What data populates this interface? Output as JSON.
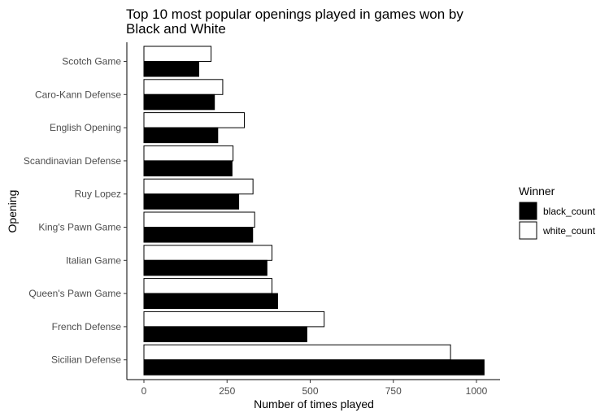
{
  "chart_data": {
    "type": "bar",
    "orientation": "horizontal",
    "title": "Top 10 most popular openings played in games won by Black and White",
    "title_lines": [
      "Top 10 most popular openings played in games won by",
      "Black and White"
    ],
    "xlabel": "Number of times played",
    "ylabel": "Opening",
    "xlim": [
      0,
      1070
    ],
    "x_ticks": [
      0,
      250,
      500,
      750,
      1000
    ],
    "grid": false,
    "legend_title": "Winner",
    "legend_position": "right",
    "categories": [
      "Scotch Game",
      "Caro-Kann Defense",
      "English Opening",
      "Scandinavian Defense",
      "Ruy Lopez",
      "King's Pawn Game",
      "Italian Game",
      "Queen's Pawn Game",
      "French Defense",
      "Sicilian Defense"
    ],
    "series": [
      {
        "name": "white_count",
        "color": "#ffffff",
        "values": [
          202,
          237,
          302,
          268,
          328,
          333,
          385,
          385,
          542,
          922
        ]
      },
      {
        "name": "black_count",
        "color": "#000000",
        "values": [
          165,
          212,
          222,
          265,
          285,
          327,
          370,
          402,
          490,
          1023
        ]
      }
    ]
  }
}
